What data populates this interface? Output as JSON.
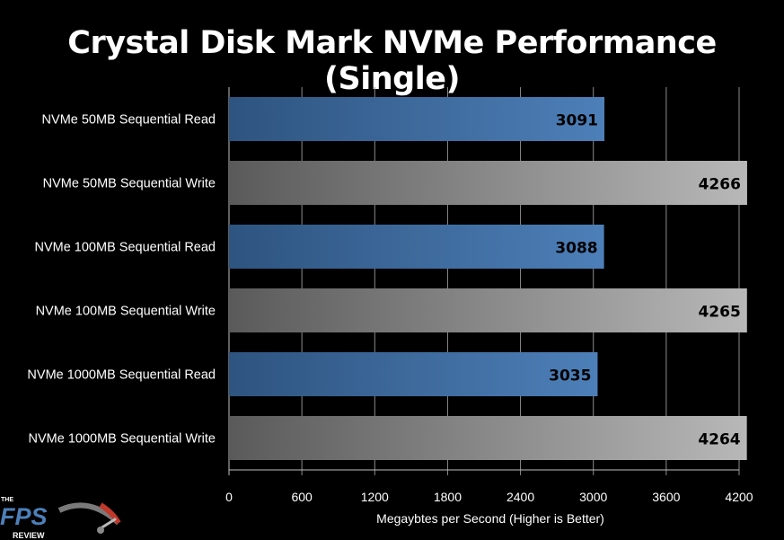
{
  "chart_data": {
    "type": "bar",
    "orientation": "horizontal",
    "title": "Crystal Disk Mark NVMe Performance (Single)",
    "xlabel": "Megaybtes per Second (Higher is Better)",
    "ylabel": "",
    "xlim": [
      0,
      4200
    ],
    "x_ticks": [
      "0",
      "600",
      "1200",
      "1800",
      "2400",
      "3000",
      "3600",
      "4200"
    ],
    "grid": "vertical",
    "categories": [
      "NVMe 50MB Sequential Read",
      "NVMe 50MB Sequential Write",
      "NVMe 100MB Sequential Read",
      "NVMe 100MB Sequential Write",
      "NVMe 1000MB Sequential Read",
      "NVMe 1000MB Sequential Write"
    ],
    "values": [
      3091,
      4266,
      3088,
      4265,
      3035,
      4264
    ],
    "data_labels": [
      "3091",
      "4266",
      "3088",
      "4265",
      "3035",
      "4264"
    ],
    "bar_colors": [
      "blue",
      "gray",
      "blue",
      "gray",
      "blue",
      "gray"
    ]
  },
  "colors": {
    "background": "#000000",
    "read_bar_dark": "#2e5480",
    "read_bar_light": "#4d7fb8",
    "write_bar_dark": "#5a5a5a",
    "write_bar_light": "#b8b8b8",
    "gridline": "#8c8c8c",
    "text": "#ffffff",
    "data_label": "#000000"
  },
  "logo": {
    "small_text": "THE",
    "main_text": "FPS",
    "sub_text": "REVIEW"
  }
}
